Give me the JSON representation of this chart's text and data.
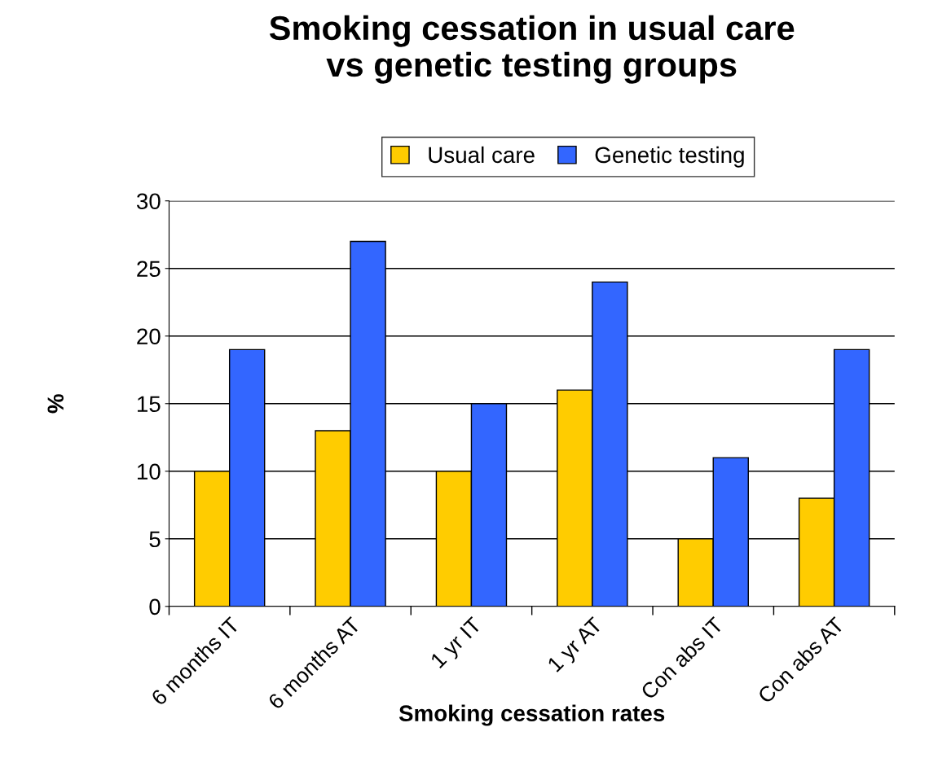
{
  "chart_data": {
    "type": "bar",
    "title": "Smoking cessation in usual care\nvs genetic testing groups",
    "xlabel": "Smoking cessation rates",
    "ylabel": "%",
    "categories": [
      "6 months IT",
      "6 months AT",
      "1 yr IT",
      "1 yr AT",
      "Con abs IT",
      "Con abs AT"
    ],
    "series": [
      {
        "name": "Usual care",
        "color": "#ffcc00",
        "values": [
          10,
          13,
          10,
          16,
          5,
          8
        ]
      },
      {
        "name": "Genetic testing",
        "color": "#3366ff",
        "values": [
          19,
          27,
          15,
          24,
          11,
          19
        ]
      }
    ],
    "ylim": [
      0,
      30
    ],
    "yticks": [
      0,
      5,
      10,
      15,
      20,
      25,
      30
    ],
    "grid": "y",
    "legend": "top"
  }
}
